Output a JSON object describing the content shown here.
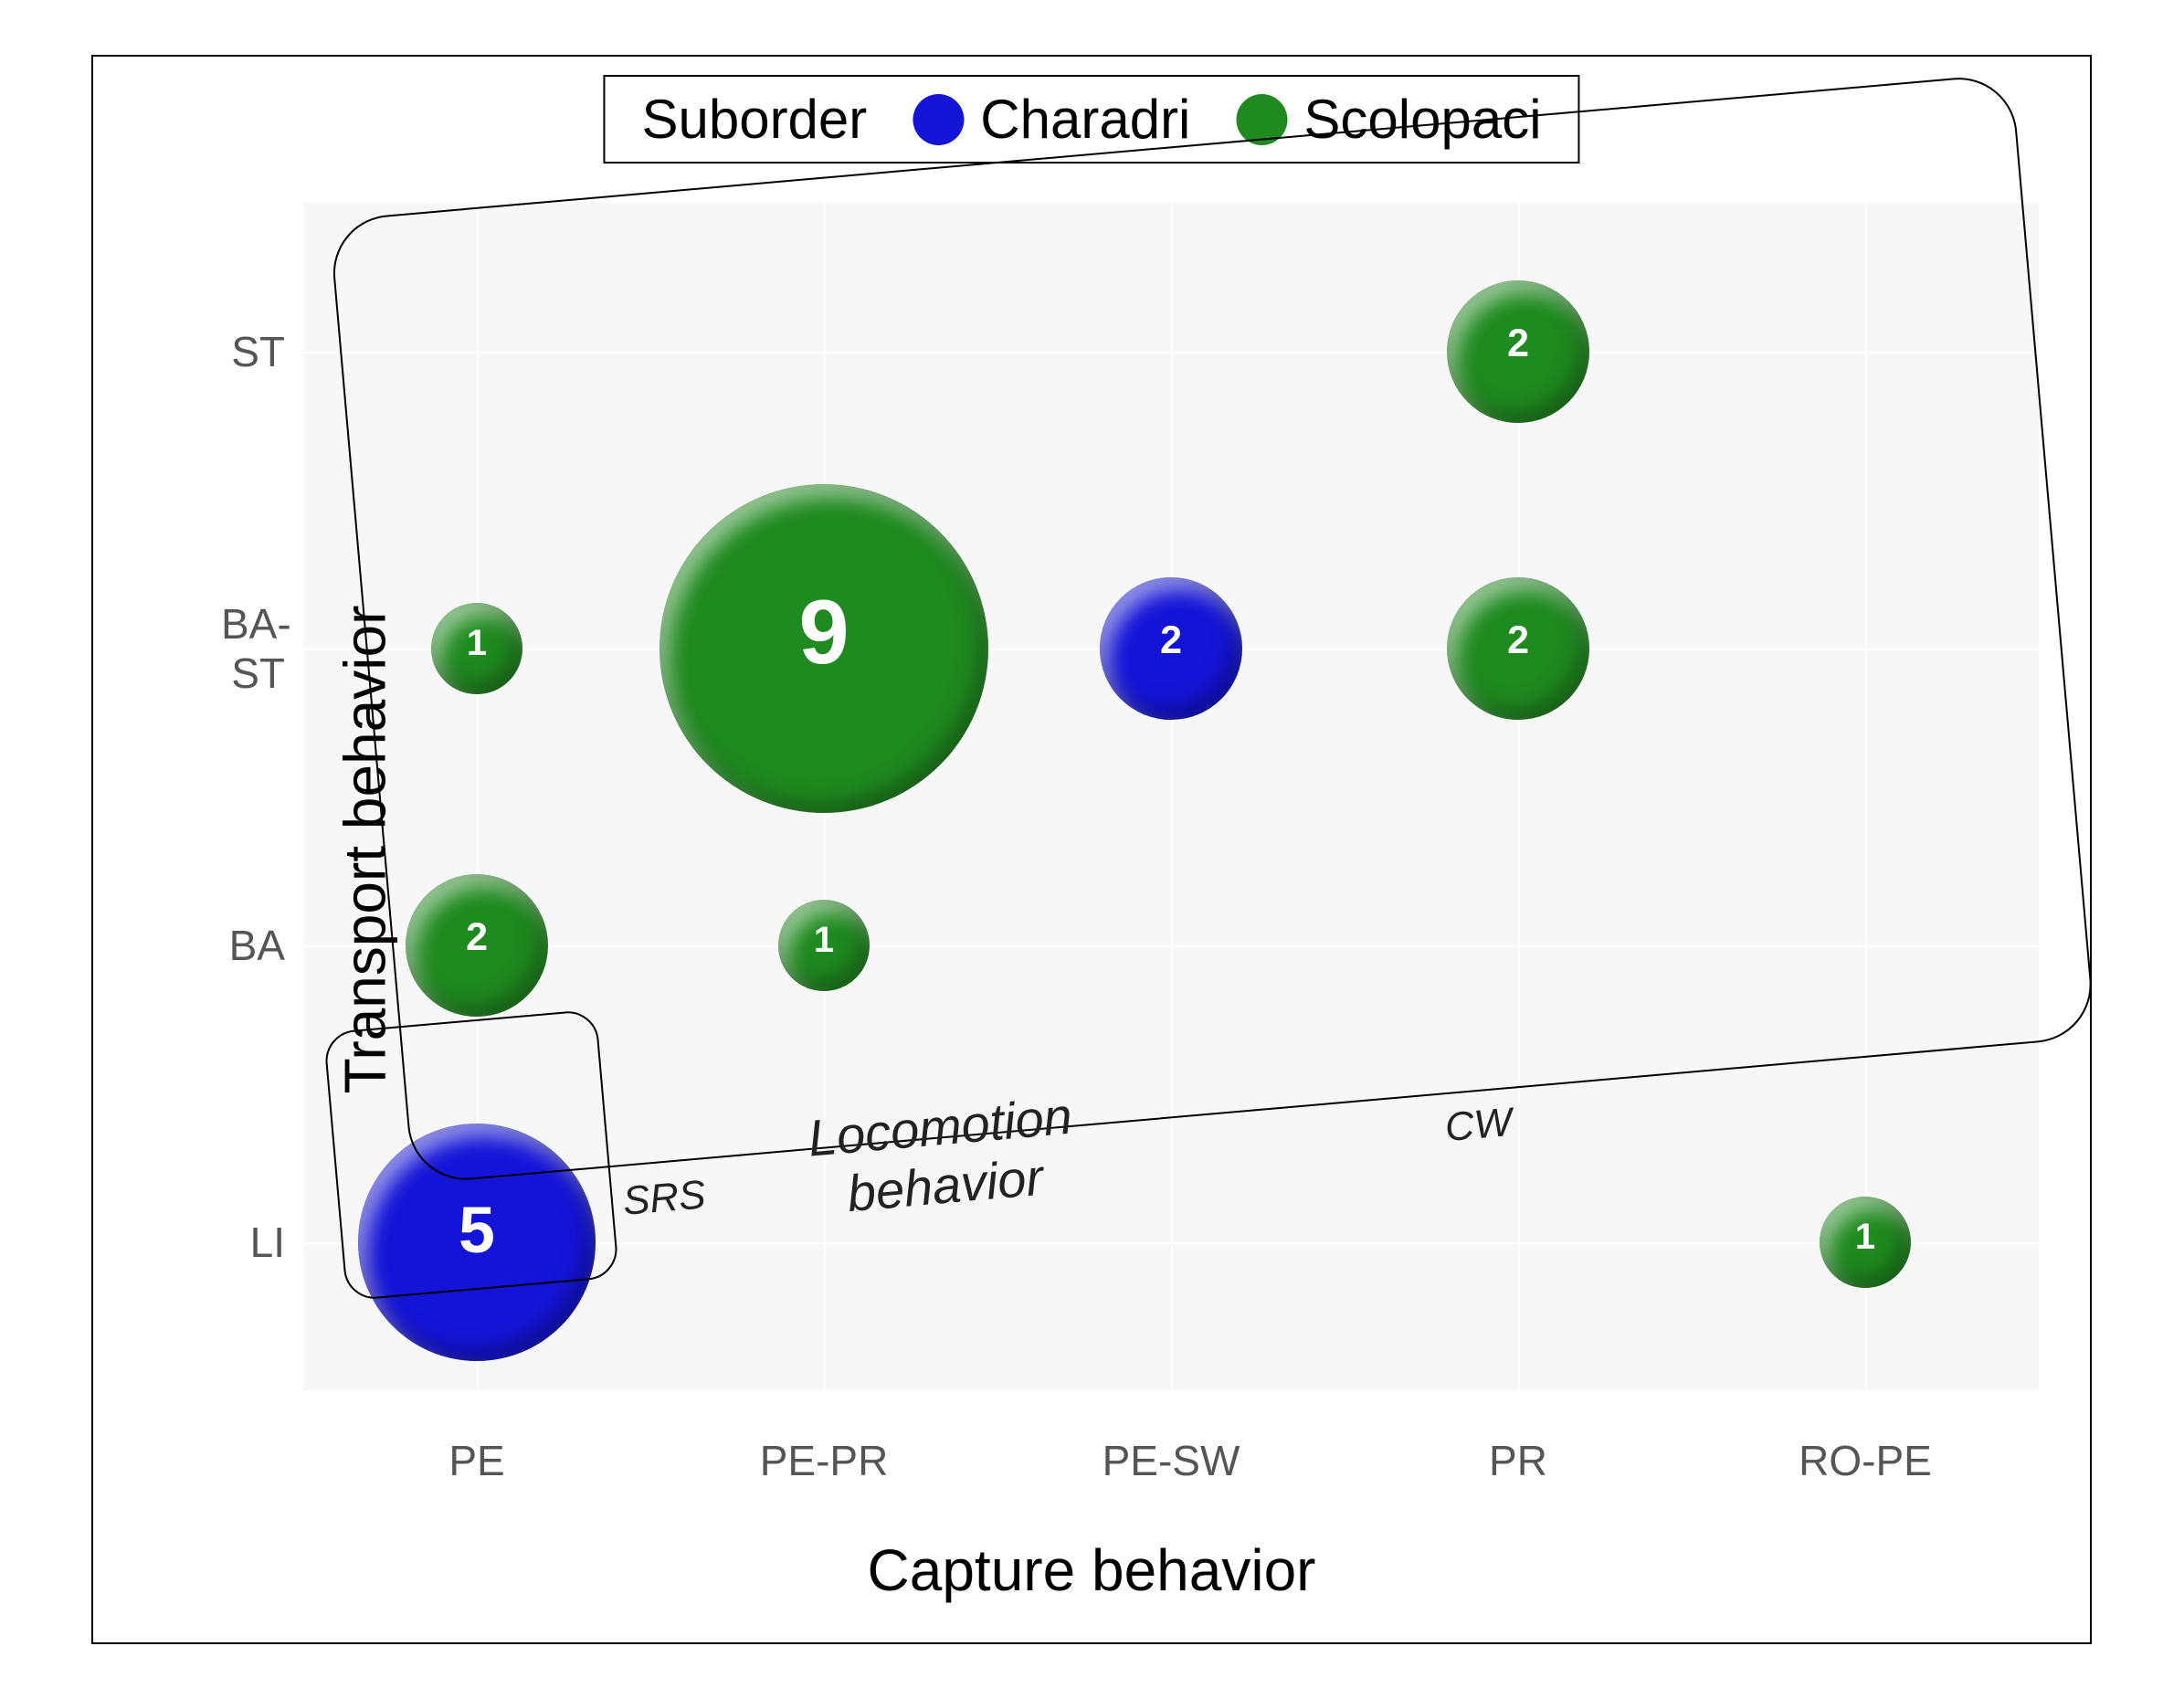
{
  "chart": {
    "type": "bubble",
    "background_color": "#ffffff",
    "plot_background_color": "#f7f7f7",
    "grid_color": "#ffffff",
    "outer_border_color": "#000000",
    "x_axis": {
      "title": "Capture behavior",
      "title_fontsize": 64,
      "categories": [
        "PE",
        "PE-PR",
        "PE-SW",
        "PR",
        "RO-PE"
      ],
      "tick_fontsize": 46,
      "tick_color": "#555555"
    },
    "y_axis": {
      "title": "Transport behavior",
      "title_fontsize": 64,
      "categories": [
        "LI",
        "BA",
        "BA-ST",
        "ST"
      ],
      "tick_fontsize": 46,
      "tick_color": "#555555"
    },
    "legend": {
      "title": "Suborder",
      "items": [
        {
          "label": "Charadri",
          "color": "#1414d8"
        },
        {
          "label": "Scolopaci",
          "color": "#1f8a1f"
        }
      ],
      "title_fontsize": 60,
      "label_fontsize": 60,
      "dot_size": 56
    },
    "colors": {
      "Charadri": "#1414d8",
      "Scolopaci": "#1f8a1f"
    },
    "bubble_label_color": "#ffffff",
    "bubble_label_fontweight": "bold",
    "bubbles": [
      {
        "x": "PE",
        "y": "BA-ST",
        "value": 1,
        "group": "Scolopaci",
        "radius": 50
      },
      {
        "x": "PE-PR",
        "y": "BA-ST",
        "value": 9,
        "group": "Scolopaci",
        "radius": 180
      },
      {
        "x": "PE-SW",
        "y": "BA-ST",
        "value": 2,
        "group": "Charadri",
        "radius": 78
      },
      {
        "x": "PR",
        "y": "BA-ST",
        "value": 2,
        "group": "Scolopaci",
        "radius": 78
      },
      {
        "x": "PR",
        "y": "ST",
        "value": 2,
        "group": "Scolopaci",
        "radius": 78
      },
      {
        "x": "PE",
        "y": "BA",
        "value": 2,
        "group": "Scolopaci",
        "radius": 78
      },
      {
        "x": "PE-PR",
        "y": "BA",
        "value": 1,
        "group": "Scolopaci",
        "radius": 50
      },
      {
        "x": "PE",
        "y": "LI",
        "value": 5,
        "group": "Charadri",
        "radius": 130
      },
      {
        "x": "RO-PE",
        "y": "LI",
        "value": 1,
        "group": "Scolopaci",
        "radius": 50
      }
    ],
    "annotations": {
      "locomotion_label": "Locomotion\nbehavior",
      "locomotion_fontsize": 56,
      "srs_label": "SRS",
      "cw_label": "CW",
      "small_label_fontsize": 44,
      "box_cw": {
        "rotation_deg": -5,
        "border_radius": 40
      },
      "box_srs": {
        "rotation_deg": -5,
        "border_radius": 34
      }
    }
  }
}
